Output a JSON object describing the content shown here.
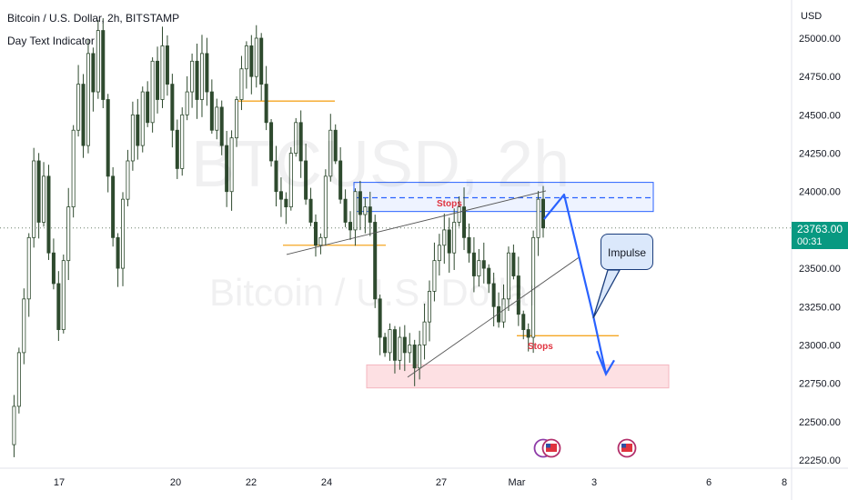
{
  "header": {
    "title": "Bitcoin / U.S. Dollar, 2h, BITSTAMP",
    "indicator": "Day Text Indicator"
  },
  "watermark": {
    "symbol": "BTCUSD, 2h",
    "name": "Bitcoin / U.S. Dollar"
  },
  "price_axis": {
    "currency": "USD",
    "labels": [
      "25000.00",
      "24750.00",
      "24500.00",
      "24250.00",
      "24000.00",
      "23750.00",
      "23500.00",
      "23250.00",
      "23000.00",
      "22750.00",
      "22500.00",
      "22250.00"
    ]
  },
  "current_price": {
    "value": "23763.00",
    "countdown": "00:31",
    "color": "#089981"
  },
  "time_axis": {
    "labels": [
      "17",
      "20",
      "22",
      "24",
      "27",
      "Mar",
      "3",
      "6",
      "8"
    ]
  },
  "annotations": {
    "stops_upper": "Stops",
    "stops_lower": "Stops",
    "callout": "Impulse"
  },
  "colors": {
    "candle": "#2e4a2e",
    "orange_level": "#f5a623",
    "blue_zone": "#2962ff",
    "pink_zone": "#fde0e3",
    "arrow": "#2962ff"
  },
  "chart_data": {
    "type": "candlestick",
    "symbol": "Bitcoin / U.S. Dollar, 2h, BITSTAMP",
    "x_tick_labels": [
      "17",
      "20",
      "22",
      "24",
      "27",
      "Mar",
      "3",
      "6",
      "8"
    ],
    "ylim": [
      22200,
      25150
    ],
    "y_ticks": [
      25000,
      24750,
      24500,
      24250,
      24000,
      23750,
      23500,
      23250,
      23000,
      22750,
      22500,
      22250
    ],
    "last_price": 23763,
    "levels": [
      {
        "kind": "orange-line",
        "y": 24590
      },
      {
        "kind": "orange-line",
        "y": 23650
      },
      {
        "kind": "orange-line",
        "y": 23060
      },
      {
        "kind": "blue-zone-top",
        "y": 24060
      },
      {
        "kind": "blue-zone-mid-dashed",
        "y": 23960
      },
      {
        "kind": "blue-zone-bottom",
        "y": 23870
      },
      {
        "kind": "pink-zone-top",
        "y": 22870
      },
      {
        "kind": "pink-zone-bottom",
        "y": 22720
      }
    ],
    "projection": [
      23980,
      23190,
      22810
    ],
    "path": [
      22350,
      22600,
      22950,
      23300,
      23700,
      24200,
      23800,
      24100,
      23600,
      23400,
      23100,
      23550,
      23900,
      24400,
      24700,
      24300,
      24900,
      24650,
      25050,
      24600,
      24100,
      23700,
      23500,
      23950,
      24200,
      24500,
      24300,
      24650,
      24450,
      24850,
      24600,
      24950,
      24700,
      24400,
      24150,
      24500,
      24650,
      24850,
      24600,
      24900,
      24650,
      24400,
      24550,
      24300,
      24000,
      24350,
      24600,
      24800,
      24950,
      24750,
      25000,
      24700,
      24450,
      24200,
      24000,
      23950,
      23900,
      24250,
      24450,
      24200,
      23950,
      23800,
      23650,
      23700,
      24100,
      24400,
      24200,
      23950,
      23800,
      23750,
      24000,
      23850,
      23900,
      23800,
      23300,
      23050,
      22950,
      23100,
      22900,
      23050,
      22950,
      23000,
      22850,
      23000,
      23150,
      23350,
      23550,
      23650,
      23750,
      23600,
      23800,
      23900,
      23700,
      23600,
      23450,
      23550,
      23500,
      23400,
      23250,
      23150,
      23300,
      23600,
      23450,
      23200,
      23100,
      23050,
      23700,
      23950,
      23763
    ]
  }
}
